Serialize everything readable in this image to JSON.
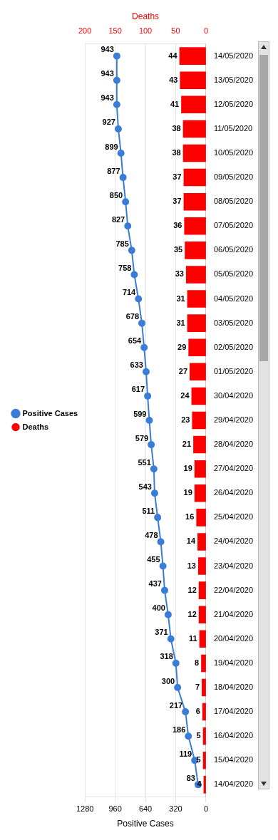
{
  "chart_data": {
    "type": "bar",
    "orientation": "horizontal",
    "categories": [
      "14/05/2020",
      "13/05/2020",
      "12/05/2020",
      "11/05/2020",
      "10/05/2020",
      "09/05/2020",
      "08/05/2020",
      "07/05/2020",
      "06/05/2020",
      "05/05/2020",
      "04/05/2020",
      "03/05/2020",
      "02/05/2020",
      "01/05/2020",
      "30/04/2020",
      "29/04/2020",
      "28/04/2020",
      "27/04/2020",
      "26/04/2020",
      "25/04/2020",
      "24/04/2020",
      "23/04/2020",
      "22/04/2020",
      "21/04/2020",
      "20/04/2020",
      "19/04/2020",
      "18/04/2020",
      "17/04/2020",
      "16/04/2020",
      "15/04/2020",
      "14/04/2020"
    ],
    "series": [
      {
        "name": "Positive Cases",
        "type": "line",
        "color": "#3a7dd8",
        "values": [
          943,
          943,
          943,
          927,
          899,
          877,
          850,
          827,
          785,
          758,
          714,
          678,
          654,
          633,
          617,
          599,
          579,
          551,
          543,
          511,
          478,
          455,
          437,
          400,
          371,
          318,
          300,
          217,
          186,
          119,
          83
        ]
      },
      {
        "name": "Deaths",
        "axis": "x2",
        "color": "#ff0000",
        "values": [
          44,
          43,
          41,
          38,
          38,
          37,
          37,
          36,
          35,
          33,
          31,
          31,
          29,
          27,
          24,
          23,
          21,
          19,
          19,
          16,
          14,
          13,
          12,
          12,
          11,
          8,
          7,
          6,
          5,
          5,
          4
        ]
      }
    ],
    "xlabel": "Positive Cases",
    "x2label": "Deaths",
    "xlim": [
      1280,
      0
    ],
    "xticks": [
      1280,
      960,
      640,
      320,
      0
    ],
    "x2lim": [
      200,
      0
    ],
    "x2ticks": [
      200,
      150,
      100,
      50,
      0
    ],
    "grid": "x",
    "legend": "left",
    "marker": "circle",
    "data_labels": true
  }
}
